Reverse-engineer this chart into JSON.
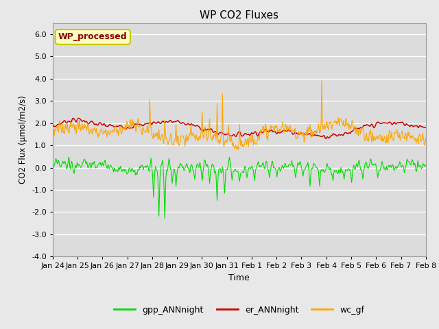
{
  "title": "WP CO2 Fluxes",
  "xlabel": "Time",
  "ylabel": "CO2 Flux (μmol/m2/s)",
  "ylim": [
    -4.0,
    6.5
  ],
  "yticks": [
    -4.0,
    -3.0,
    -2.0,
    -1.0,
    0.0,
    1.0,
    2.0,
    3.0,
    4.0,
    5.0,
    6.0
  ],
  "bg_color": "#e8e8e8",
  "plot_bg_color": "#dcdcdc",
  "grid_color": "#ffffff",
  "line_colors": {
    "gpp": "#00dd00",
    "er": "#cc0000",
    "wc": "#ffa500"
  },
  "legend_labels": [
    "gpp_ANNnight",
    "er_ANNnight",
    "wc_gf"
  ],
  "annotation_text": "WP_processed",
  "annotation_color": "#8b0000",
  "annotation_bg": "#ffffc0",
  "annotation_border": "#c8c800",
  "n_points": 700,
  "xtick_labels": [
    "Jan 24",
    "Jan 25",
    "Jan 26",
    "Jan 27",
    "Jan 28",
    "Jan 29",
    "Jan 30",
    "Jan 31",
    "Feb 1",
    "Feb 2",
    "Feb 3",
    "Feb 4",
    "Feb 5",
    "Feb 6",
    "Feb 7",
    "Feb 8"
  ]
}
